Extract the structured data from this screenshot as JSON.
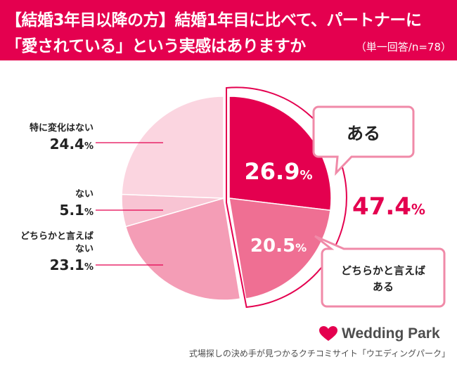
{
  "header": {
    "line1": "【結婚3年目以降の方】結婚1年目に比べて、パートナーに",
    "line2": "「愛されている」という実感はありますか",
    "note": "（単一回答/n=78）"
  },
  "chart_data": {
    "type": "pie",
    "title": "【結婚3年目以降の方】結婚1年目に比べて、パートナーに「愛されている」という実感はありますか",
    "slices": [
      {
        "label": "ある",
        "value": 26.9,
        "value_text": "26.9",
        "color": "#e4004f",
        "exploded": true
      },
      {
        "label": "どちらかと言えばある",
        "value": 20.5,
        "value_text": "20.5",
        "color": "#ef6f93",
        "exploded": true
      },
      {
        "label": "どちらかと言えばない",
        "value": 23.1,
        "value_text": "23.1",
        "color": "#f49db6"
      },
      {
        "label": "ない",
        "value": 5.1,
        "value_text": "5.1",
        "color": "#f8c4d3"
      },
      {
        "label": "特に変化はない",
        "value": 24.4,
        "value_text": "24.4",
        "color": "#fbd5e0"
      }
    ],
    "combined": {
      "label_text": "47.4",
      "value": 47.4
    },
    "percent_sign": "%",
    "left_labels": {
      "no_change": "特に変化はない",
      "no": "ない",
      "rather_no_1": "どちらかと言えば",
      "rather_no_2": "ない"
    },
    "callouts": {
      "yes": "ある",
      "rather_yes_1": "どちらかと言えば",
      "rather_yes_2": "ある"
    }
  },
  "footer": {
    "logo": "Wedding Park",
    "tagline": "式場探しの決め手が見つかるクチコミサイト「ウエディングパーク」"
  },
  "colors": {
    "accent": "#e4004f",
    "text": "#222222",
    "line": "#e4004f"
  }
}
